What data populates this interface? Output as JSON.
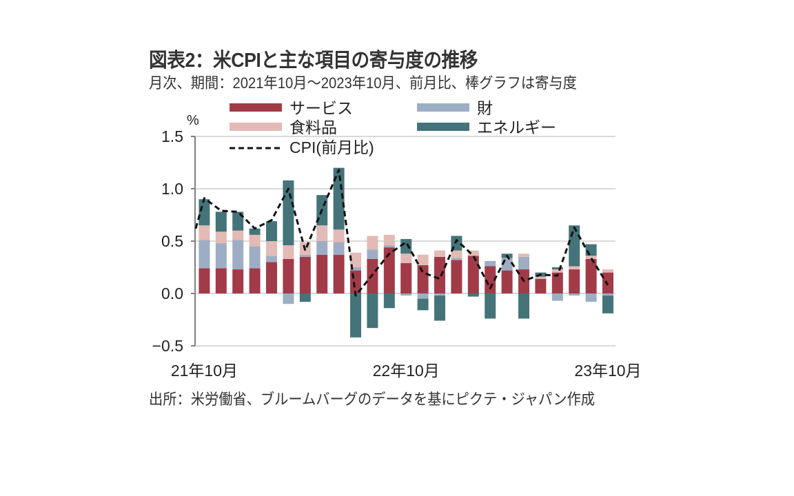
{
  "header": {
    "title": "図表2：米CPIと主な項目の寄与度の推移",
    "subtitle": "月次、期間：2021年10月～2023年10月、前月比、棒グラフは寄与度"
  },
  "footer": {
    "source": "出所：米労働省、ブルームバーグのデータを基にピクテ・ジャパン作成"
  },
  "colors": {
    "services": "#A23B48",
    "goods": "#9DAEC4",
    "food": "#E3BAB5",
    "energy": "#44747A",
    "cpi": "#111111",
    "grid": "#D9D9D9",
    "axis": "#7F7F7F"
  },
  "chart_data": {
    "type": "bar",
    "stacked": true,
    "title": "米CPIと主な項目の寄与度の推移",
    "ylabel": "%",
    "xlabel": "",
    "ylim": [
      -0.5,
      1.5
    ],
    "yticks": [
      -0.5,
      0.0,
      0.5,
      1.0,
      1.5
    ],
    "ytick_labels": [
      "-0.5",
      "0.0",
      "0.5",
      "1.0",
      "1.5"
    ],
    "grid": true,
    "legend_placement": "top",
    "categories": [
      "2021-10",
      "2021-11",
      "2021-12",
      "2022-01",
      "2022-02",
      "2022-03",
      "2022-04",
      "2022-05",
      "2022-06",
      "2022-07",
      "2022-08",
      "2022-09",
      "2022-10",
      "2022-11",
      "2022-12",
      "2023-01",
      "2023-02",
      "2023-03",
      "2023-04",
      "2023-05",
      "2023-06",
      "2023-07",
      "2023-08",
      "2023-09",
      "2023-10"
    ],
    "xtick_labels": [
      {
        "index": 0,
        "label": "21年10月"
      },
      {
        "index": 12,
        "label": "22年10月"
      },
      {
        "index": 24,
        "label": "23年10月"
      }
    ],
    "series": [
      {
        "key": "services",
        "name": "サービス",
        "kind": "bar",
        "values": [
          0.24,
          0.24,
          0.23,
          0.24,
          0.3,
          0.33,
          0.35,
          0.37,
          0.37,
          0.22,
          0.33,
          0.44,
          0.29,
          0.27,
          0.35,
          0.32,
          0.36,
          0.26,
          0.22,
          0.23,
          0.14,
          0.2,
          0.23,
          0.33,
          0.2
        ]
      },
      {
        "key": "goods",
        "name": "財",
        "kind": "bar",
        "values": [
          0.27,
          0.24,
          0.28,
          0.21,
          0.06,
          -0.1,
          0.02,
          0.13,
          0.12,
          0.03,
          0.09,
          0.02,
          -0.02,
          -0.05,
          -0.02,
          0.02,
          0.0,
          0.05,
          0.12,
          0.12,
          0.0,
          -0.07,
          -0.02,
          -0.08,
          -0.02
        ]
      },
      {
        "key": "food",
        "name": "食料品",
        "kind": "bar",
        "values": [
          0.14,
          0.11,
          0.09,
          0.11,
          0.14,
          0.13,
          0.12,
          0.15,
          0.12,
          0.14,
          0.13,
          0.1,
          0.09,
          0.1,
          0.06,
          0.07,
          0.05,
          0.0,
          0.0,
          0.03,
          0.02,
          0.03,
          0.03,
          0.03,
          0.03
        ]
      },
      {
        "key": "energy",
        "name": "エネルギー",
        "kind": "bar",
        "values": [
          0.25,
          0.19,
          0.18,
          0.06,
          0.19,
          0.62,
          -0.08,
          0.29,
          0.59,
          -0.42,
          -0.33,
          -0.14,
          0.14,
          -0.11,
          -0.24,
          0.14,
          -0.03,
          -0.24,
          0.04,
          -0.24,
          0.04,
          0.02,
          0.39,
          0.11,
          -0.17
        ]
      },
      {
        "key": "cpi",
        "name": "CPI(前月比)",
        "kind": "line",
        "style": "dashed",
        "left_edge_value": 0.62,
        "values": [
          0.91,
          0.79,
          0.78,
          0.62,
          0.7,
          1.0,
          0.41,
          0.8,
          1.18,
          -0.02,
          0.18,
          0.38,
          0.49,
          0.2,
          0.14,
          0.51,
          0.36,
          0.05,
          0.36,
          0.12,
          0.18,
          0.17,
          0.63,
          0.34,
          0.08
        ]
      }
    ],
    "legend": [
      {
        "key": "services",
        "label": "サービス"
      },
      {
        "key": "goods",
        "label": "財"
      },
      {
        "key": "food",
        "label": "食料品"
      },
      {
        "key": "energy",
        "label": "エネルギー"
      },
      {
        "key": "cpi",
        "label": "CPI(前月比)"
      }
    ]
  }
}
